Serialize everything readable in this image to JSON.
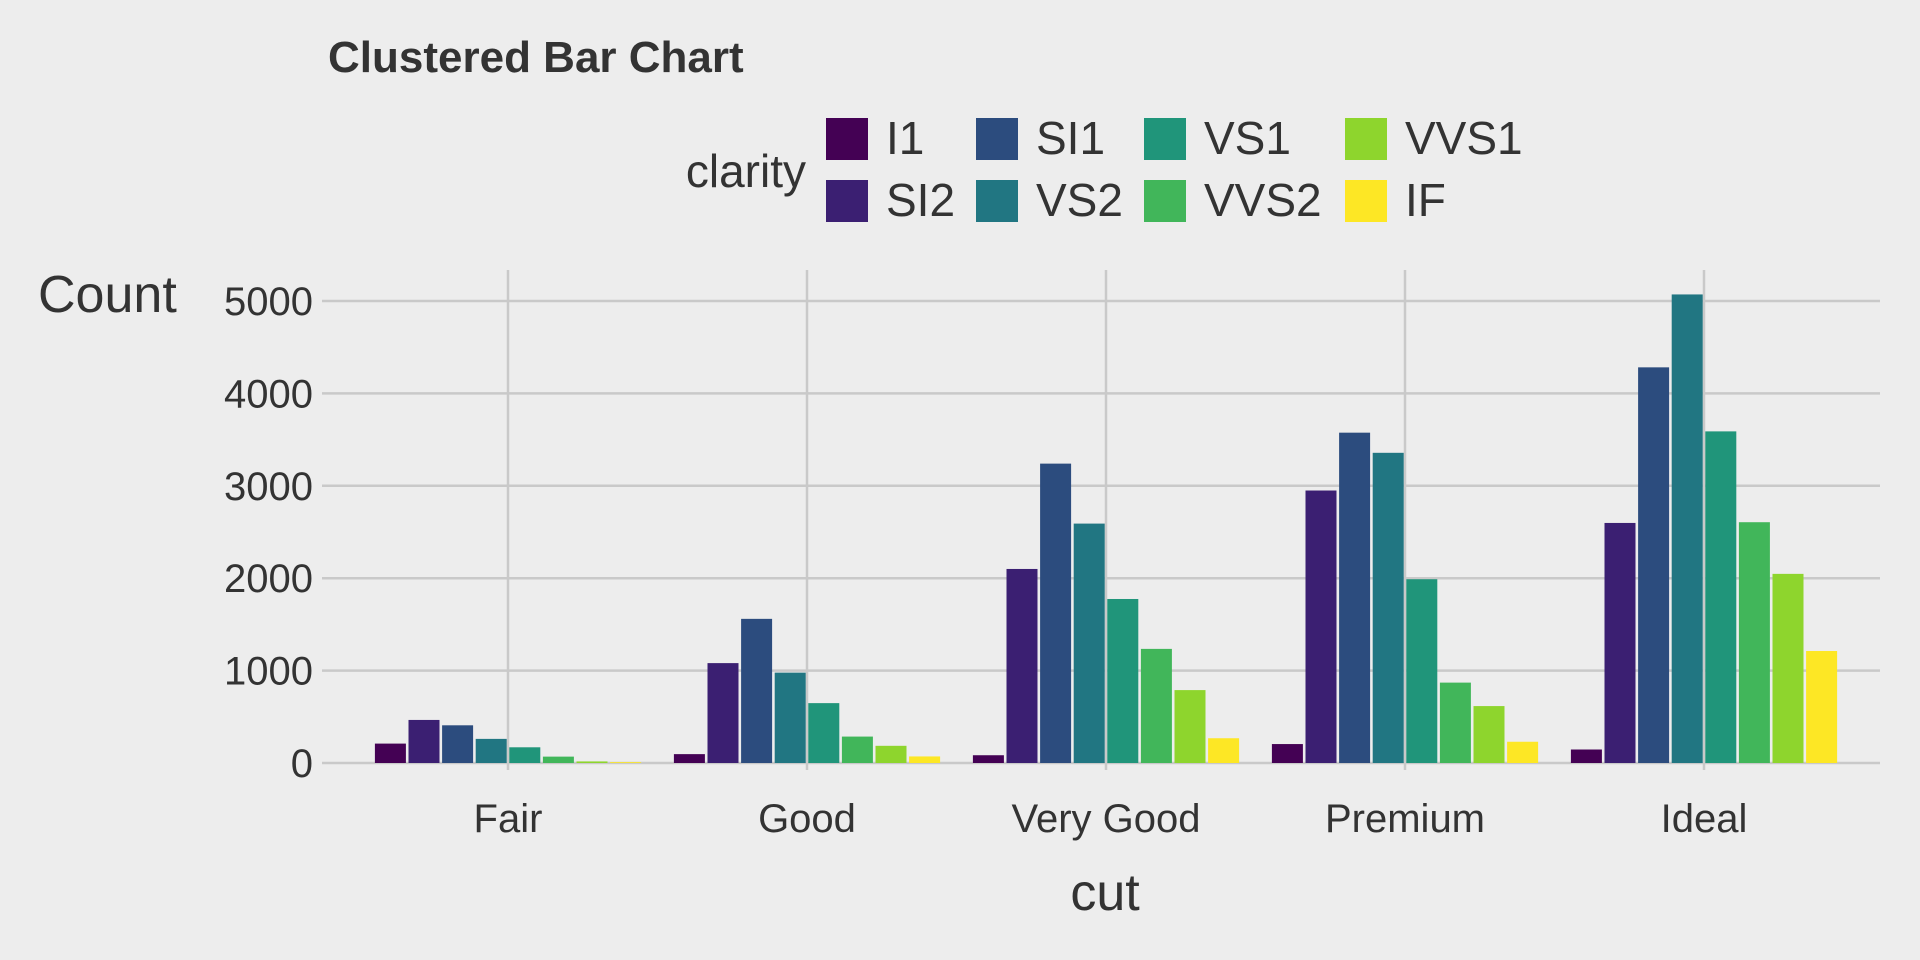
{
  "chart_data": {
    "type": "bar",
    "title": "Clustered Bar Chart",
    "xlabel": "cut",
    "ylabel": "Count",
    "legend_title": "clarity",
    "legend_position": "top",
    "grid": true,
    "ylim": [
      0,
      5200
    ],
    "yticks": [
      0,
      1000,
      2000,
      3000,
      4000,
      5000
    ],
    "categories": [
      "Fair",
      "Good",
      "Very Good",
      "Premium",
      "Ideal"
    ],
    "series": [
      {
        "name": "I1",
        "color": "#440154",
        "values": [
          210,
          96,
          84,
          205,
          146
        ]
      },
      {
        "name": "SI2",
        "color": "#3b1f72",
        "values": [
          466,
          1081,
          2100,
          2949,
          2598
        ]
      },
      {
        "name": "SI1",
        "color": "#2c4c7e",
        "values": [
          408,
          1560,
          3240,
          3575,
          4282
        ]
      },
      {
        "name": "VS2",
        "color": "#217682",
        "values": [
          261,
          978,
          2591,
          3357,
          5071
        ]
      },
      {
        "name": "VS1",
        "color": "#20957a",
        "values": [
          170,
          648,
          1775,
          1989,
          3589
        ]
      },
      {
        "name": "VVS2",
        "color": "#41b65a",
        "values": [
          69,
          286,
          1235,
          870,
          2606
        ]
      },
      {
        "name": "VVS1",
        "color": "#8ed52d",
        "values": [
          17,
          186,
          789,
          616,
          2047
        ]
      },
      {
        "name": "IF",
        "color": "#fde725",
        "values": [
          9,
          71,
          268,
          230,
          1212
        ]
      }
    ]
  }
}
